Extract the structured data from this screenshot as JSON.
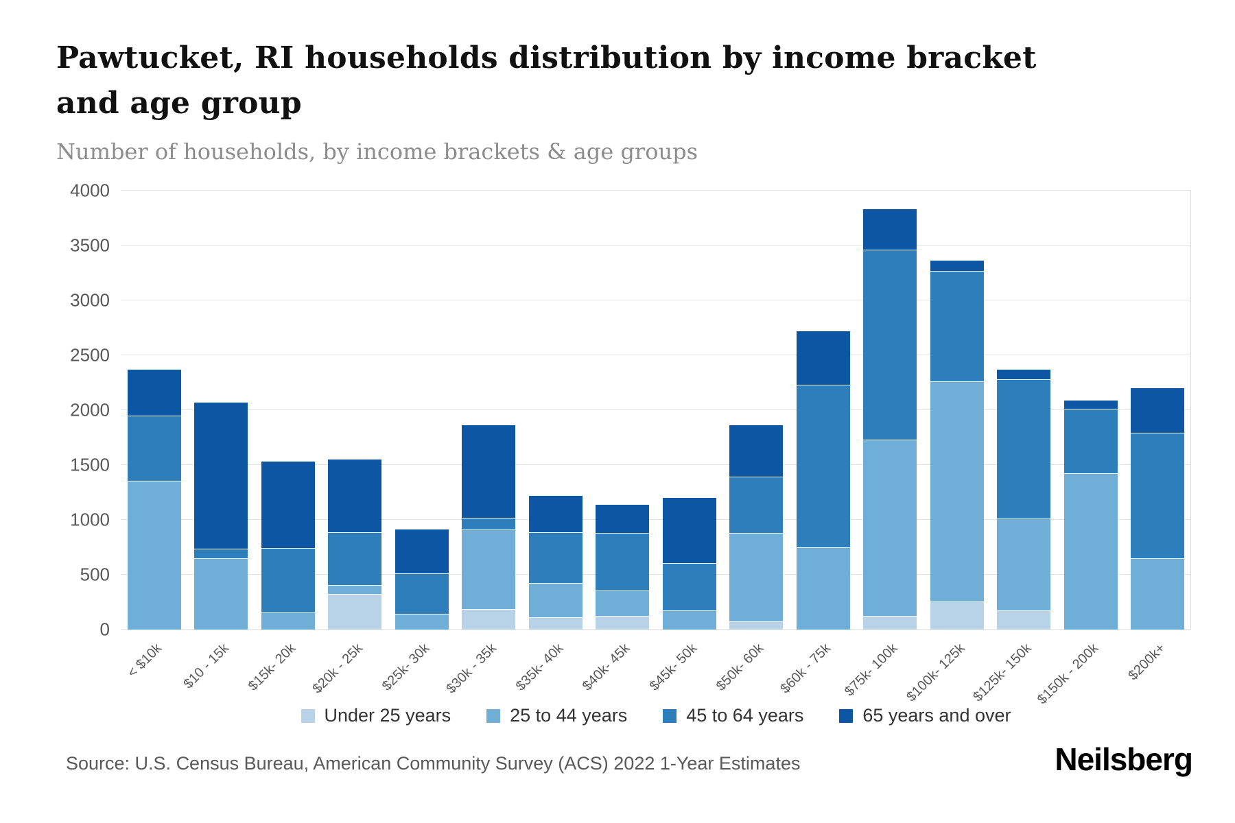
{
  "header": {
    "title": "Pawtucket, RI households distribution by income bracket and age group",
    "subtitle": "Number of households, by income brackets & age groups"
  },
  "chart_data": {
    "type": "bar",
    "stacked": true,
    "title": "Pawtucket, RI households distribution by income bracket and age group",
    "subtitle": "Number of households, by income brackets & age groups",
    "xlabel": "",
    "ylabel": "Number of households",
    "ylim": [
      0,
      4000
    ],
    "yticks": [
      0,
      500,
      1000,
      1500,
      2000,
      2500,
      3000,
      3500,
      4000
    ],
    "grid": true,
    "legend_position": "bottom",
    "categories": [
      "< $10k",
      "$10 - 15k",
      "$15k- 20k",
      "$20k - 25k",
      "$25k- 30k",
      "$30k - 35k",
      "$35k- 40k",
      "$40k- 45k",
      "$45k- 50k",
      "$50k- 60k",
      "$60k - 75k",
      "$75k- 100k",
      "$100k- 125k",
      "$125k- 150k",
      "$150k - 200k",
      "$200k+"
    ],
    "series": [
      {
        "name": "Under 25 years",
        "color": "#b8d3e8",
        "values": [
          0,
          0,
          0,
          320,
          0,
          180,
          110,
          120,
          0,
          70,
          0,
          120,
          250,
          170,
          0,
          0
        ]
      },
      {
        "name": "25 to 44 years",
        "color": "#6fafd7",
        "values": [
          1360,
          650,
          150,
          80,
          140,
          730,
          310,
          230,
          170,
          810,
          750,
          1610,
          2010,
          840,
          1430,
          650
        ]
      },
      {
        "name": "45 to 64 years",
        "color": "#2e7ebc",
        "values": [
          590,
          80,
          590,
          480,
          370,
          100,
          460,
          530,
          430,
          510,
          1480,
          1730,
          1010,
          1270,
          580,
          1140
        ]
      },
      {
        "name": "65 years and over",
        "color": "#0d56a4",
        "values": [
          420,
          1340,
          790,
          670,
          400,
          850,
          340,
          260,
          600,
          470,
          490,
          370,
          90,
          90,
          80,
          410
        ]
      }
    ]
  },
  "footer": {
    "source": "Source: U.S. Census Bureau, American Community Survey (ACS) 2022 1-Year Estimates",
    "brand": "Neilsberg"
  }
}
